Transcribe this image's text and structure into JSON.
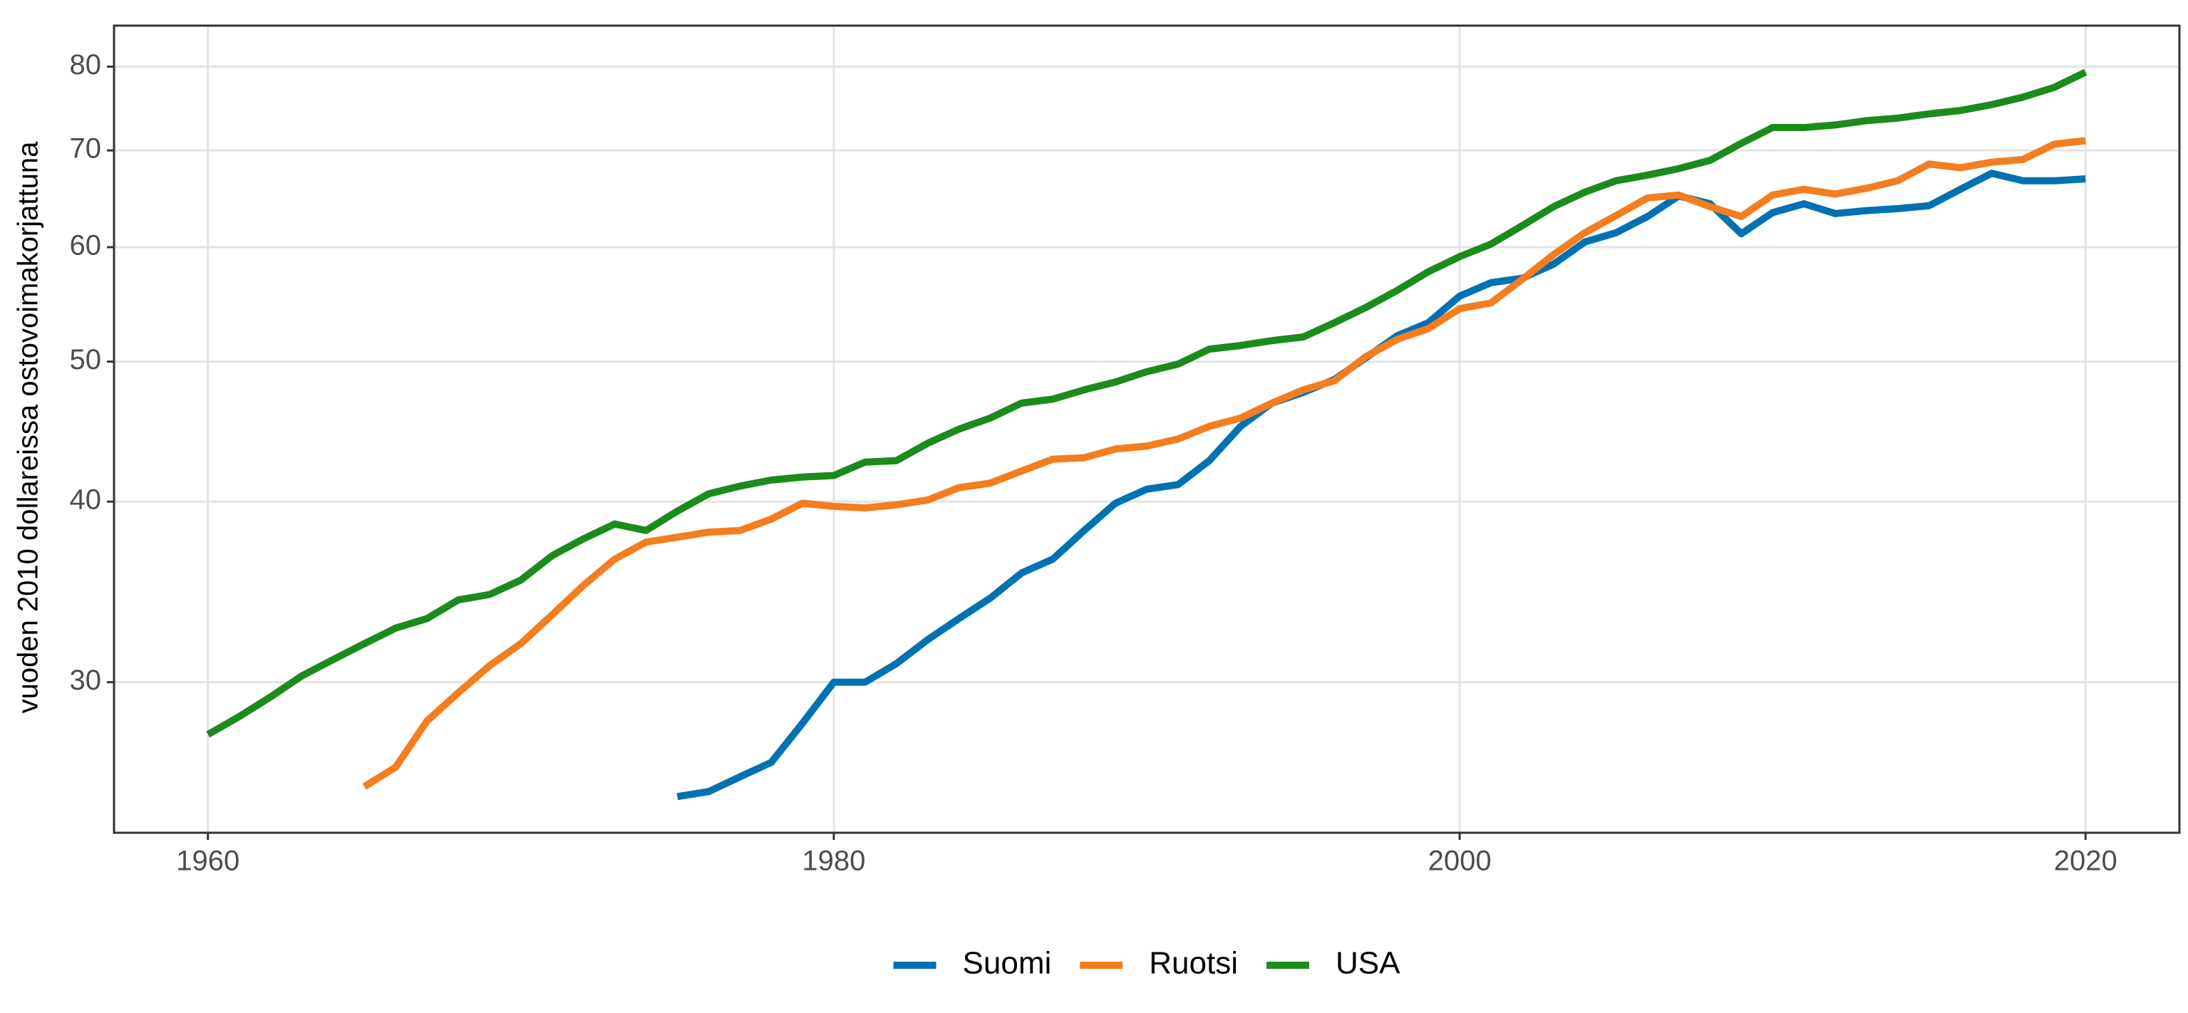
{
  "chart_data": {
    "type": "line",
    "y_label": "vuoden 2010 dollareissa ostovoimakorjattuna",
    "log_scale_y": true,
    "grid": true,
    "legend_position": "bottom",
    "x": [
      1960,
      1961,
      1962,
      1963,
      1964,
      1965,
      1966,
      1967,
      1968,
      1969,
      1970,
      1971,
      1972,
      1973,
      1974,
      1975,
      1976,
      1977,
      1978,
      1979,
      1980,
      1981,
      1982,
      1983,
      1984,
      1985,
      1986,
      1987,
      1988,
      1989,
      1990,
      1991,
      1992,
      1993,
      1994,
      1995,
      1996,
      1997,
      1998,
      1999,
      2000,
      2001,
      2002,
      2003,
      2004,
      2005,
      2006,
      2007,
      2008,
      2009,
      2010,
      2011,
      2012,
      2013,
      2014,
      2015,
      2016,
      2017,
      2018,
      2019,
      2020
    ],
    "xlim": [
      1957,
      2023
    ],
    "xticks": [
      1960,
      1980,
      2000,
      2020
    ],
    "ylim": [
      23.6,
      85.4
    ],
    "yticks": [
      30,
      40,
      50,
      60,
      70,
      80
    ],
    "series": [
      {
        "name": "Suomi",
        "color": "#0072b2",
        "values": [
          null,
          null,
          null,
          null,
          null,
          null,
          null,
          null,
          null,
          null,
          null,
          null,
          null,
          null,
          null,
          25.0,
          25.2,
          25.8,
          26.4,
          28.1,
          30.0,
          30.0,
          30.9,
          32.1,
          33.2,
          34.3,
          35.7,
          36.5,
          38.2,
          39.9,
          40.8,
          41.1,
          42.7,
          45.1,
          46.8,
          47.6,
          48.6,
          50.3,
          52.1,
          53.2,
          55.5,
          56.7,
          57.1,
          58.4,
          60.5,
          61.4,
          63.0,
          65.1,
          64.3,
          61.3,
          63.4,
          64.3,
          63.3,
          63.6,
          63.8,
          64.1,
          65.8,
          67.5,
          66.7,
          66.7,
          66.9
        ]
      },
      {
        "name": "Ruotsi",
        "color": "#f47d20",
        "values": [
          null,
          null,
          null,
          null,
          null,
          25.4,
          26.2,
          28.2,
          29.5,
          30.8,
          31.9,
          33.4,
          35.0,
          36.5,
          37.5,
          37.8,
          38.1,
          38.2,
          38.9,
          39.9,
          39.7,
          39.6,
          39.8,
          40.1,
          40.9,
          41.2,
          42.0,
          42.8,
          42.9,
          43.5,
          43.7,
          44.2,
          45.1,
          45.7,
          46.8,
          47.8,
          48.5,
          50.4,
          51.8,
          52.7,
          54.4,
          54.9,
          57.0,
          59.3,
          61.4,
          63.1,
          64.9,
          65.2,
          64.0,
          63.0,
          65.2,
          65.8,
          65.3,
          65.9,
          66.7,
          68.5,
          68.1,
          68.7,
          69.0,
          70.7,
          71.1
        ]
      },
      {
        "name": "USA",
        "color": "#1b8c1b",
        "values": [
          27.6,
          28.4,
          29.3,
          30.3,
          31.1,
          31.9,
          32.7,
          33.2,
          34.2,
          34.5,
          35.3,
          36.7,
          37.7,
          38.6,
          38.2,
          39.4,
          40.5,
          41.0,
          41.4,
          41.6,
          41.7,
          42.6,
          42.7,
          43.9,
          44.9,
          45.7,
          46.8,
          47.1,
          47.8,
          48.4,
          49.2,
          49.8,
          51.0,
          51.3,
          51.7,
          52.0,
          53.2,
          54.5,
          56.0,
          57.7,
          59.1,
          60.3,
          62.1,
          64.0,
          65.5,
          66.7,
          67.3,
          68.0,
          68.9,
          70.8,
          72.6,
          72.6,
          72.9,
          73.4,
          73.7,
          74.2,
          74.6,
          75.3,
          76.2,
          77.4,
          79.3
        ]
      }
    ]
  }
}
